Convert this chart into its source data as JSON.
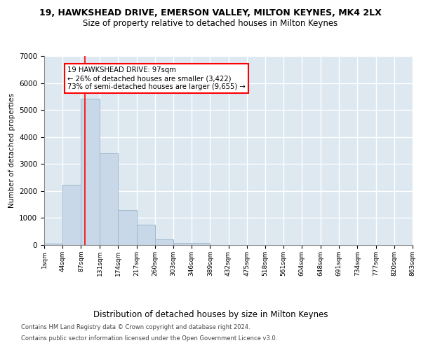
{
  "title": "19, HAWKSHEAD DRIVE, EMERSON VALLEY, MILTON KEYNES, MK4 2LX",
  "subtitle": "Size of property relative to detached houses in Milton Keynes",
  "xlabel": "Distribution of detached houses by size in Milton Keynes",
  "ylabel": "Number of detached properties",
  "footer_line1": "Contains HM Land Registry data © Crown copyright and database right 2024.",
  "footer_line2": "Contains public sector information licensed under the Open Government Licence v3.0.",
  "bin_labels": [
    "1sqm",
    "44sqm",
    "87sqm",
    "131sqm",
    "174sqm",
    "217sqm",
    "260sqm",
    "303sqm",
    "346sqm",
    "389sqm",
    "432sqm",
    "475sqm",
    "518sqm",
    "561sqm",
    "604sqm",
    "648sqm",
    "691sqm",
    "734sqm",
    "777sqm",
    "820sqm",
    "863sqm"
  ],
  "bar_values": [
    50,
    2230,
    5430,
    3400,
    1300,
    750,
    200,
    75,
    75,
    0,
    0,
    0,
    0,
    0,
    0,
    0,
    0,
    0,
    0,
    0
  ],
  "bar_color": "#c8d8e8",
  "bar_edgecolor": "#a0b8cc",
  "background_color": "#dde8f0",
  "grid_color": "white",
  "annotation_text": "19 HAWKSHEAD DRIVE: 97sqm\n← 26% of detached houses are smaller (3,422)\n73% of semi-detached houses are larger (9,655) →",
  "redline_x": 97,
  "ylim": [
    0,
    7000
  ],
  "bin_width": 43
}
